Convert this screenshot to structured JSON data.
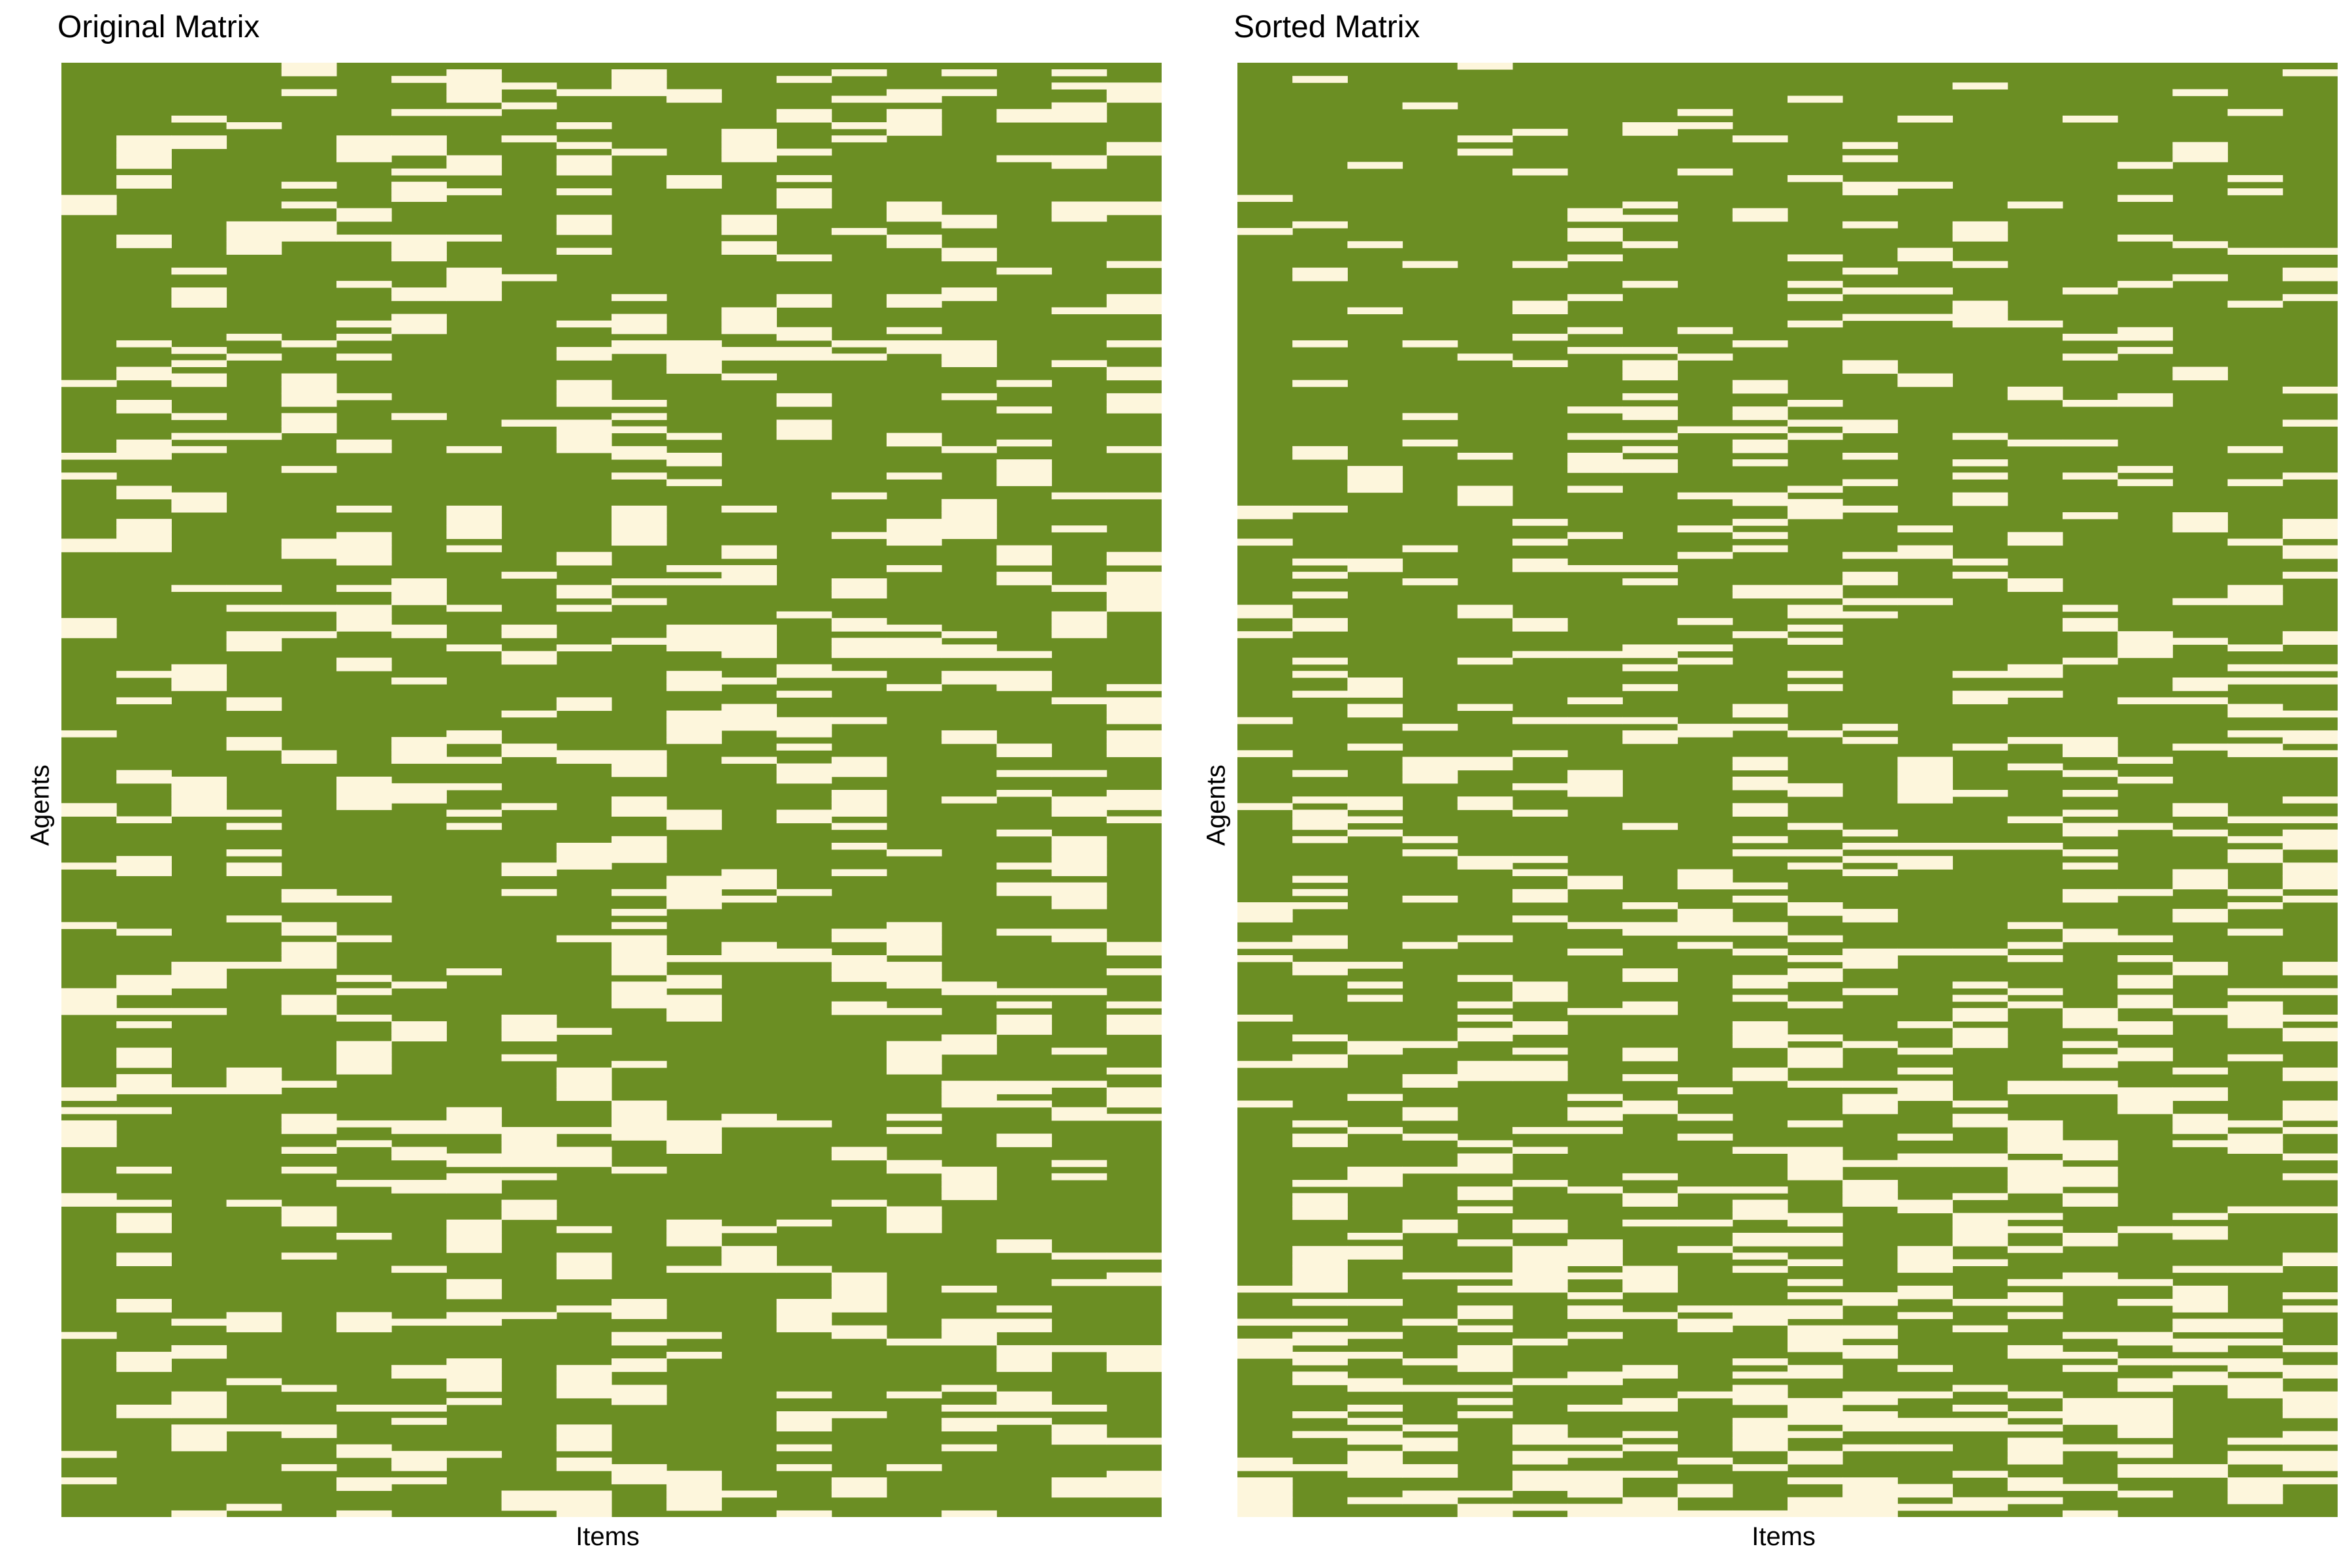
{
  "chart_data": [
    {
      "type": "heatmap",
      "id": "original",
      "title": "Original Matrix",
      "xlabel": "Items",
      "ylabel": "Agents",
      "rows": 220,
      "cols": 20,
      "value_colors": {
        "0": "#fdf6dc",
        "1": "#6b8e23"
      },
      "zero_density": [
        0.22,
        0.24,
        0.2,
        0.17,
        0.3,
        0.25,
        0.31,
        0.2,
        0.19,
        0.22,
        0.3,
        0.27,
        0.22,
        0.27,
        0.28,
        0.25,
        0.24,
        0.25,
        0.27,
        0.25
      ],
      "sorted": false,
      "grid": false,
      "tick_labels": false
    },
    {
      "type": "heatmap",
      "id": "sorted",
      "title": "Sorted Matrix",
      "xlabel": "Items",
      "ylabel": "Agents",
      "rows": 220,
      "cols": 20,
      "value_colors": {
        "0": "#fdf6dc",
        "1": "#6b8e23"
      },
      "zero_density": [
        0.22,
        0.24,
        0.2,
        0.17,
        0.3,
        0.25,
        0.31,
        0.2,
        0.19,
        0.22,
        0.3,
        0.27,
        0.22,
        0.27,
        0.28,
        0.25,
        0.24,
        0.25,
        0.27,
        0.25
      ],
      "sorted": true,
      "sort_order": "ascending number of zeros per agent (top to bottom)",
      "grid": false,
      "tick_labels": false
    }
  ]
}
